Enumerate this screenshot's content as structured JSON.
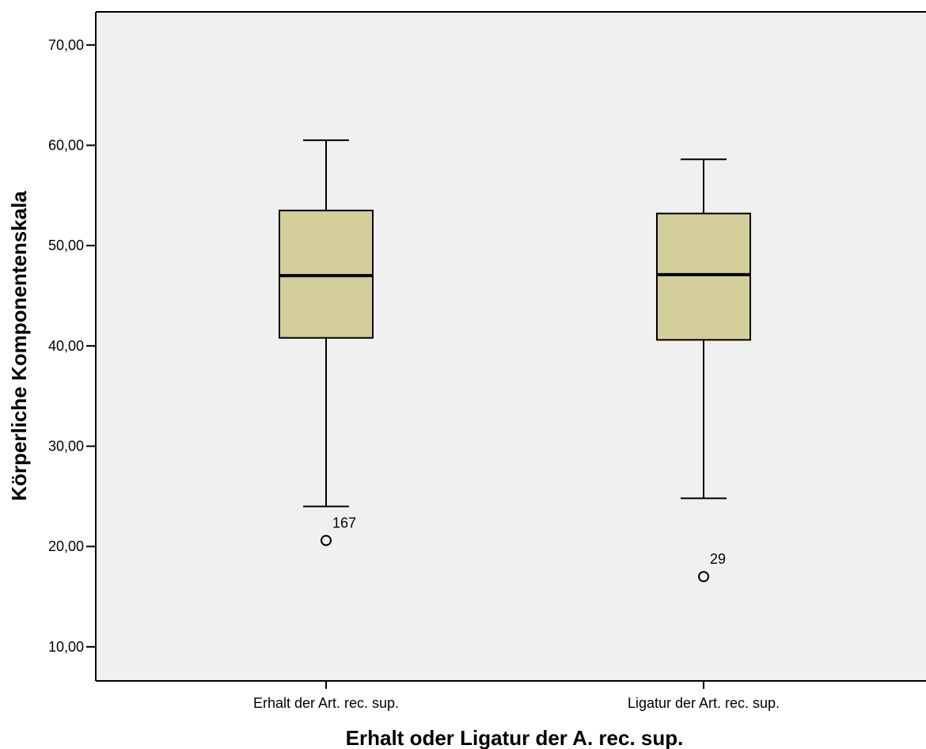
{
  "colors": {
    "plot_background": "#f0f0f0",
    "box_fill": "#d3cd9a",
    "line": "#000000"
  },
  "chart_data": {
    "type": "boxplot",
    "title": "",
    "xlabel": "Erhalt oder Ligatur der A. rec. sup.",
    "ylabel": "Körperliche Komponentenskala",
    "ylim": [
      6.6,
      73.3
    ],
    "yticks": [
      10,
      20,
      30,
      40,
      50,
      60,
      70
    ],
    "ytick_labels": [
      "10,00",
      "20,00",
      "30,00",
      "40,00",
      "50,00",
      "60,00",
      "70,00"
    ],
    "grid": false,
    "categories": [
      "Erhalt der Art. rec. sup.",
      "Ligatur der Art. rec. sup."
    ],
    "boxes": [
      {
        "category": "Erhalt der Art. rec. sup.",
        "whisker_low": 24.0,
        "q1": 40.8,
        "median": 47.0,
        "q3": 53.5,
        "whisker_high": 60.5,
        "outliers": [
          {
            "value": 20.6,
            "label": "167"
          }
        ]
      },
      {
        "category": "Ligatur der Art. rec. sup.",
        "whisker_low": 24.8,
        "q1": 40.6,
        "median": 47.1,
        "q3": 53.2,
        "whisker_high": 58.6,
        "outliers": [
          {
            "value": 17.0,
            "label": "29"
          }
        ]
      }
    ]
  }
}
